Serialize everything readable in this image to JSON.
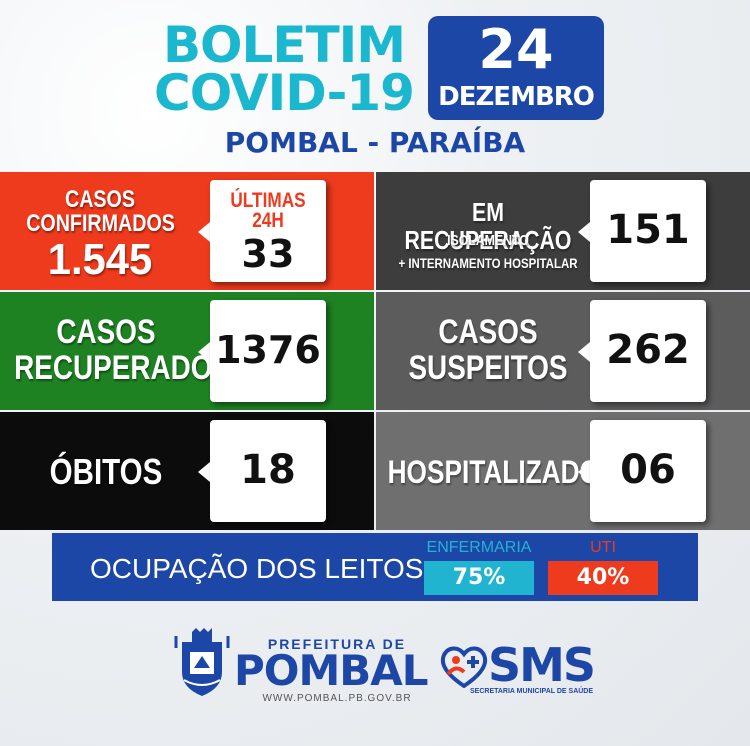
{
  "header": {
    "title_line1": "BOLETIM",
    "title_line2": "COVID-19",
    "date_day": "24",
    "date_month": "DEZEMBRO",
    "location": "POMBAL - PARAÍBA"
  },
  "confirmed": {
    "label_line1": "CASOS",
    "label_line2": "CONFIRMADOS",
    "total": "1.545",
    "last24_label_line1": "ÚLTIMAS",
    "last24_label_line2": "24H",
    "last24_value": "33"
  },
  "recovering": {
    "label": "EM RECUPERAÇÃO",
    "sub_line1": "ISOLAMENTO",
    "sub_line2": "+ INTERNAMENTO HOSPITALAR",
    "value": "151"
  },
  "recovered": {
    "label_line1": "CASOS",
    "label_line2": "RECUPERADOS",
    "value": "1376"
  },
  "suspected": {
    "label_line1": "CASOS",
    "label_line2": "SUSPEITOS",
    "value": "262"
  },
  "deaths": {
    "label": "ÓBITOS",
    "value": "18"
  },
  "hospitalized": {
    "label": "HOSPITALIZADOS",
    "value": "06"
  },
  "beds": {
    "label": "OCUPAÇÃO DOS LEITOS:",
    "ward_label": "ENFERMARIA",
    "ward_value": "75%",
    "icu_label": "UTI",
    "icu_value": "40%"
  },
  "footer": {
    "prefeitura_small": "PREFEITURA DE",
    "prefeitura_big": "POMBAL",
    "prefeitura_url": "WWW.POMBAL.PB.GOV.BR",
    "sms_title": "SMS",
    "sms_subtitle": "SECRETARIA MUNICIPAL DE SAÚDE"
  },
  "colors": {
    "title_cyan": "#1bb7cf",
    "brand_blue": "#1d47a6",
    "confirmed_red": "#ee3a1d",
    "recovered_green": "#1e8222",
    "deaths_black": "#0c0c0c",
    "ward_cyan": "#21b4d1",
    "icu_red": "#ee3a1d"
  },
  "icons": {
    "coat_of_arms": "pombal-coat-of-arms-icon",
    "sms_logo": "heart-person-cross-icon"
  }
}
